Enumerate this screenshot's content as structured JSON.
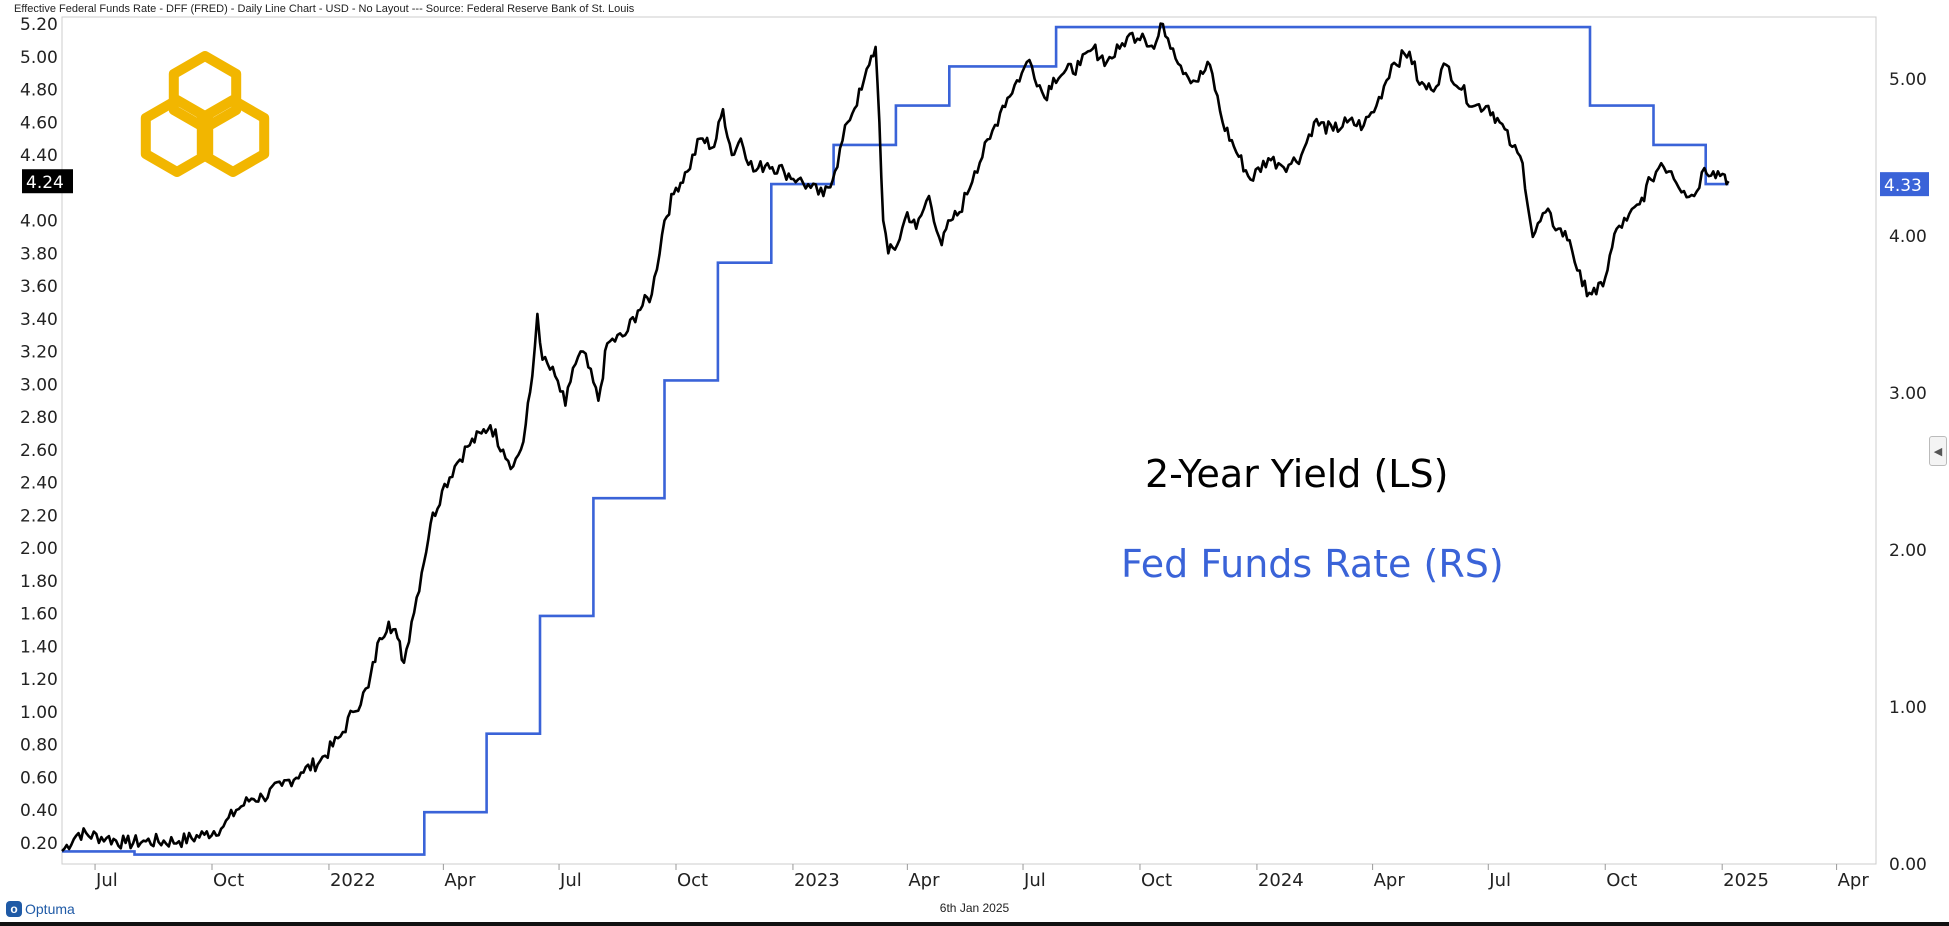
{
  "header": {
    "title": "Effective Federal Funds Rate - DFF (FRED) - Daily Line Chart - USD - No Layout --- Source: Federal Reserve Bank of St. Louis"
  },
  "footer": {
    "brand": "Optuma",
    "date": "6th Jan 2025"
  },
  "colors": {
    "yield_line": "#000000",
    "fed_line": "#3a63d8",
    "logo": "#f2b600",
    "left_badge_bg": "#000000",
    "right_badge_bg": "#3a63d8"
  },
  "icons": {
    "logo": "interlocking-hexagons-icon",
    "collapse": "chevron-left-icon"
  },
  "chart_data": {
    "type": "line",
    "annotations": [
      "2-Year Yield (LS)",
      "Fed Funds Rate (RS)"
    ],
    "x_ticks": [
      "Jul",
      "Oct",
      "2022",
      "Apr",
      "Jul",
      "Oct",
      "2023",
      "Apr",
      "Jul",
      "Oct",
      "2024",
      "Apr",
      "Jul",
      "Oct",
      "2025",
      "Apr"
    ],
    "x_range": [
      "2021-06-05",
      "2025-05-02"
    ],
    "left_axis": {
      "ylim": [
        0.12,
        5.2
      ],
      "ticks": [
        "0.20",
        "0.40",
        "0.60",
        "0.80",
        "1.00",
        "1.20",
        "1.40",
        "1.60",
        "1.80",
        "2.00",
        "2.20",
        "2.40",
        "2.60",
        "2.80",
        "3.00",
        "3.20",
        "3.40",
        "3.60",
        "3.80",
        "4.00",
        "4.24",
        "4.40",
        "4.60",
        "4.80",
        "5.00",
        "5.20"
      ],
      "last_value_label": "4.24"
    },
    "right_axis": {
      "ylim": [
        0.0,
        5.35
      ],
      "ticks": [
        "0.00",
        "1.00",
        "2.00",
        "3.00",
        "4.00",
        "5.00"
      ],
      "last_value_label": "4.33"
    },
    "series": [
      {
        "name": "2-Year Yield (LS)",
        "axis": "left",
        "points": [
          [
            "2021-06-05",
            0.15
          ],
          [
            "2021-06-18",
            0.26
          ],
          [
            "2021-07-10",
            0.23
          ],
          [
            "2021-07-25",
            0.2
          ],
          [
            "2021-08-10",
            0.21
          ],
          [
            "2021-09-05",
            0.21
          ],
          [
            "2021-09-25",
            0.25
          ],
          [
            "2021-10-10",
            0.3
          ],
          [
            "2021-10-20",
            0.4
          ],
          [
            "2021-11-01",
            0.47
          ],
          [
            "2021-11-10",
            0.48
          ],
          [
            "2021-11-25",
            0.55
          ],
          [
            "2021-12-10",
            0.63
          ],
          [
            "2021-12-25",
            0.7
          ],
          [
            "2022-01-10",
            0.85
          ],
          [
            "2022-01-20",
            1.0
          ],
          [
            "2022-02-01",
            1.15
          ],
          [
            "2022-02-10",
            1.45
          ],
          [
            "2022-02-17",
            1.55
          ],
          [
            "2022-02-24",
            1.45
          ],
          [
            "2022-03-01",
            1.3
          ],
          [
            "2022-03-07",
            1.55
          ],
          [
            "2022-03-15",
            1.85
          ],
          [
            "2022-03-22",
            2.15
          ],
          [
            "2022-03-31",
            2.35
          ],
          [
            "2022-04-10",
            2.5
          ],
          [
            "2022-04-20",
            2.62
          ],
          [
            "2022-05-01",
            2.7
          ],
          [
            "2022-05-08",
            2.75
          ],
          [
            "2022-05-18",
            2.6
          ],
          [
            "2022-05-26",
            2.5
          ],
          [
            "2022-06-03",
            2.65
          ],
          [
            "2022-06-10",
            3.05
          ],
          [
            "2022-06-14",
            3.43
          ],
          [
            "2022-06-18",
            3.15
          ],
          [
            "2022-06-28",
            3.05
          ],
          [
            "2022-07-06",
            2.87
          ],
          [
            "2022-07-12",
            3.1
          ],
          [
            "2022-07-20",
            3.2
          ],
          [
            "2022-08-01",
            2.9
          ],
          [
            "2022-08-08",
            3.25
          ],
          [
            "2022-08-22",
            3.3
          ],
          [
            "2022-09-01",
            3.45
          ],
          [
            "2022-09-12",
            3.55
          ],
          [
            "2022-09-22",
            4.0
          ],
          [
            "2022-10-01",
            4.2
          ],
          [
            "2022-10-10",
            4.3
          ],
          [
            "2022-10-20",
            4.5
          ],
          [
            "2022-10-31",
            4.45
          ],
          [
            "2022-11-07",
            4.68
          ],
          [
            "2022-11-14",
            4.4
          ],
          [
            "2022-11-21",
            4.5
          ],
          [
            "2022-12-01",
            4.3
          ],
          [
            "2022-12-12",
            4.35
          ],
          [
            "2022-12-25",
            4.3
          ],
          [
            "2023-01-05",
            4.25
          ],
          [
            "2023-01-15",
            4.2
          ],
          [
            "2023-01-25",
            4.15
          ],
          [
            "2023-02-03",
            4.3
          ],
          [
            "2023-02-13",
            4.6
          ],
          [
            "2023-02-24",
            4.8
          ],
          [
            "2023-03-02",
            4.95
          ],
          [
            "2023-03-07",
            5.06
          ],
          [
            "2023-03-10",
            4.6
          ],
          [
            "2023-03-13",
            4.0
          ],
          [
            "2023-03-17",
            3.8
          ],
          [
            "2023-03-24",
            3.85
          ],
          [
            "2023-04-01",
            4.05
          ],
          [
            "2023-04-08",
            3.95
          ],
          [
            "2023-04-18",
            4.15
          ],
          [
            "2023-04-28",
            3.85
          ],
          [
            "2023-05-05",
            4.0
          ],
          [
            "2023-05-12",
            4.05
          ],
          [
            "2023-05-24",
            4.3
          ],
          [
            "2023-06-05",
            4.5
          ],
          [
            "2023-06-15",
            4.7
          ],
          [
            "2023-06-30",
            4.9
          ],
          [
            "2023-07-06",
            4.98
          ],
          [
            "2023-07-18",
            4.75
          ],
          [
            "2023-07-25",
            4.87
          ],
          [
            "2023-08-02",
            4.9
          ],
          [
            "2023-08-15",
            4.95
          ],
          [
            "2023-08-25",
            5.05
          ],
          [
            "2023-09-05",
            4.97
          ],
          [
            "2023-09-15",
            5.05
          ],
          [
            "2023-09-21",
            5.12
          ],
          [
            "2023-10-03",
            5.14
          ],
          [
            "2023-10-12",
            5.05
          ],
          [
            "2023-10-19",
            5.2
          ],
          [
            "2023-10-27",
            5.05
          ],
          [
            "2023-11-06",
            4.9
          ],
          [
            "2023-11-14",
            4.85
          ],
          [
            "2023-11-25",
            4.95
          ],
          [
            "2023-12-05",
            4.6
          ],
          [
            "2023-12-14",
            4.45
          ],
          [
            "2023-12-27",
            4.25
          ],
          [
            "2024-01-10",
            4.38
          ],
          [
            "2024-01-18",
            4.35
          ],
          [
            "2024-01-26",
            4.34
          ],
          [
            "2024-02-05",
            4.4
          ],
          [
            "2024-02-15",
            4.6
          ],
          [
            "2024-03-01",
            4.55
          ],
          [
            "2024-03-12",
            4.6
          ],
          [
            "2024-03-25",
            4.58
          ],
          [
            "2024-04-04",
            4.7
          ],
          [
            "2024-04-16",
            4.95
          ],
          [
            "2024-04-30",
            5.03
          ],
          [
            "2024-05-08",
            4.83
          ],
          [
            "2024-05-17",
            4.8
          ],
          [
            "2024-05-29",
            4.95
          ],
          [
            "2024-06-10",
            4.8
          ],
          [
            "2024-06-20",
            4.7
          ],
          [
            "2024-07-01",
            4.7
          ],
          [
            "2024-07-10",
            4.6
          ],
          [
            "2024-07-20",
            4.45
          ],
          [
            "2024-07-28",
            4.35
          ],
          [
            "2024-08-05",
            3.9
          ],
          [
            "2024-08-15",
            4.05
          ],
          [
            "2024-08-25",
            3.95
          ],
          [
            "2024-09-03",
            3.88
          ],
          [
            "2024-09-13",
            3.6
          ],
          [
            "2024-09-24",
            3.55
          ],
          [
            "2024-10-01",
            3.65
          ],
          [
            "2024-10-10",
            3.95
          ],
          [
            "2024-10-18",
            4.0
          ],
          [
            "2024-10-28",
            4.1
          ],
          [
            "2024-11-06",
            4.25
          ],
          [
            "2024-11-14",
            4.35
          ],
          [
            "2024-11-22",
            4.3
          ],
          [
            "2024-12-02",
            4.18
          ],
          [
            "2024-12-10",
            4.15
          ],
          [
            "2024-12-18",
            4.32
          ],
          [
            "2024-12-25",
            4.3
          ],
          [
            "2025-01-03",
            4.28
          ],
          [
            "2025-01-06",
            4.24
          ]
        ]
      },
      {
        "name": "Fed Funds Rate (RS)",
        "axis": "right",
        "steps": [
          [
            "2021-06-05",
            0.08
          ],
          [
            "2021-07-15",
            0.08
          ],
          [
            "2021-08-01",
            0.06
          ],
          [
            "2021-10-01",
            0.06
          ],
          [
            "2021-12-01",
            0.06
          ],
          [
            "2022-03-17",
            0.33
          ],
          [
            "2022-05-05",
            0.83
          ],
          [
            "2022-06-16",
            1.58
          ],
          [
            "2022-07-28",
            2.33
          ],
          [
            "2022-09-22",
            3.08
          ],
          [
            "2022-11-03",
            3.83
          ],
          [
            "2022-12-15",
            4.33
          ],
          [
            "2023-02-02",
            4.58
          ],
          [
            "2023-03-23",
            4.83
          ],
          [
            "2023-05-04",
            5.08
          ],
          [
            "2023-07-27",
            5.33
          ],
          [
            "2024-09-19",
            4.83
          ],
          [
            "2024-11-08",
            4.58
          ],
          [
            "2024-12-19",
            4.33
          ],
          [
            "2025-01-06",
            4.33
          ]
        ]
      }
    ]
  }
}
